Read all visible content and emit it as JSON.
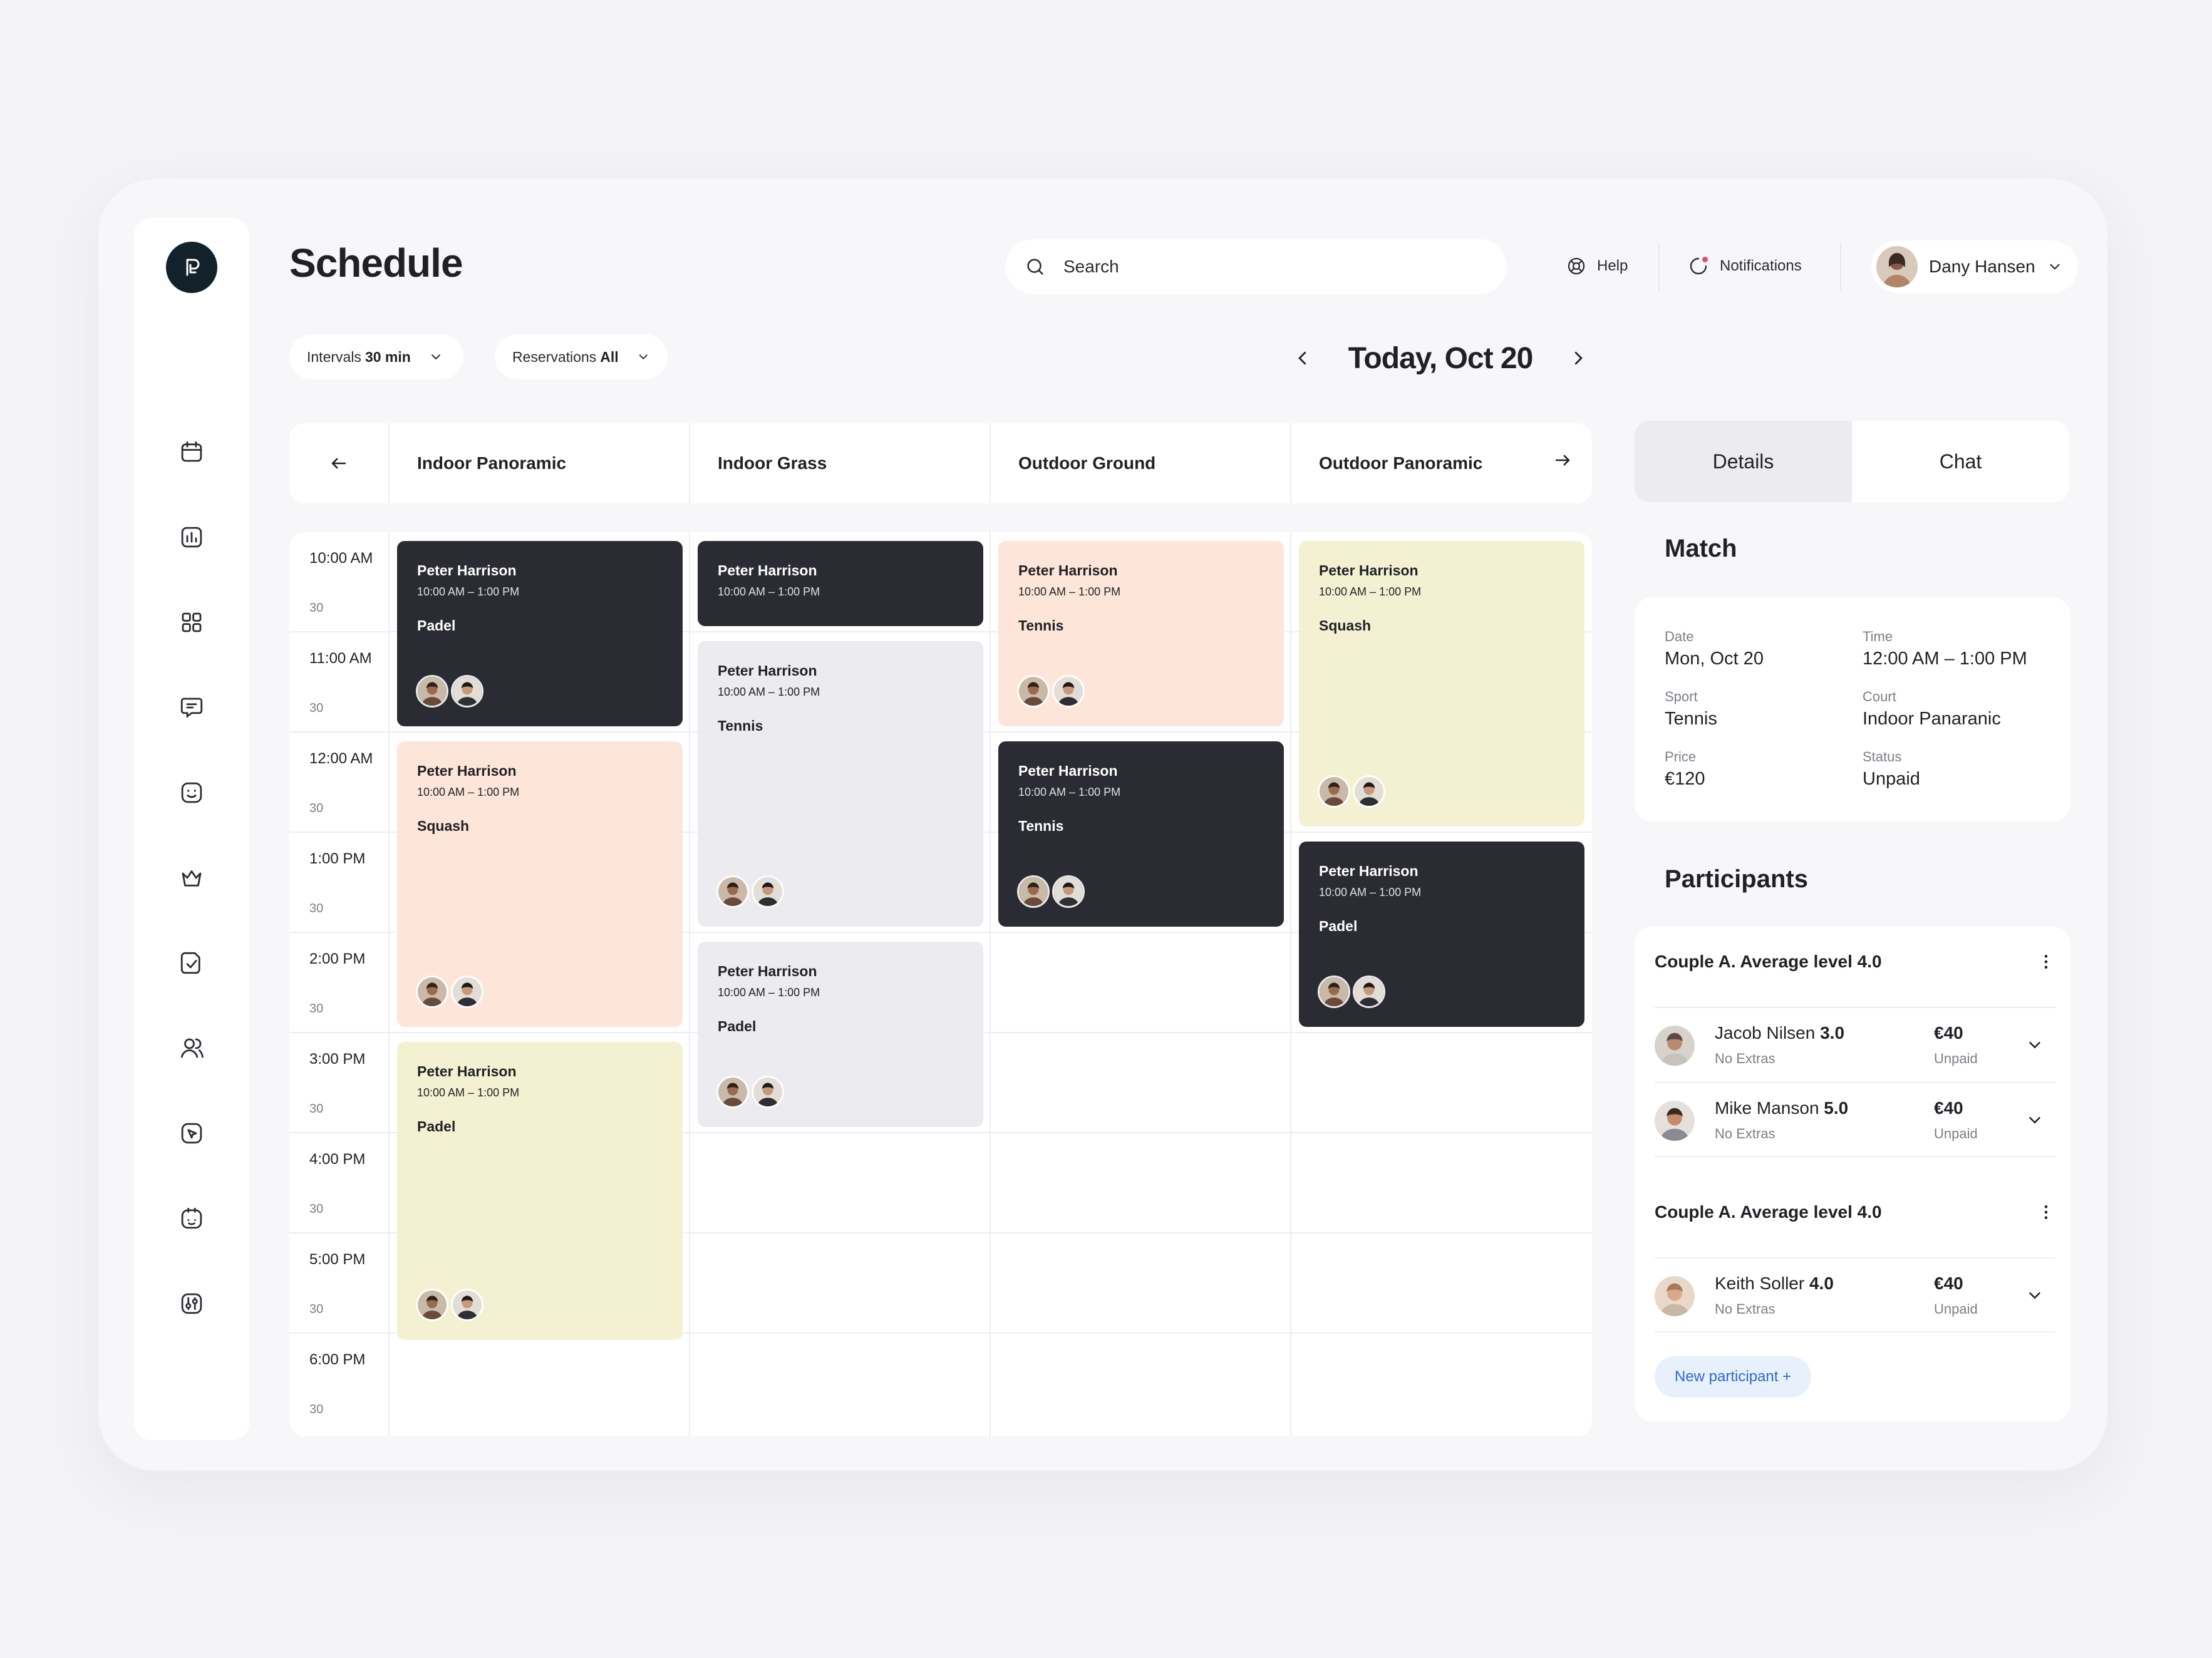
{
  "page": {
    "title": "Schedule"
  },
  "search": {
    "placeholder": "Search"
  },
  "header": {
    "help_label": "Help",
    "notifications_label": "Notifications",
    "user_name": "Dany Hansen"
  },
  "filters": {
    "intervals_label": "Intervals",
    "intervals_value": "30 min",
    "reservations_label": "Reservations",
    "reservations_value": "All"
  },
  "date_nav": {
    "date": "Today, Oct 20"
  },
  "courts": [
    "Indoor Panoramic",
    "Indoor Grass",
    "Outdoor Ground",
    "Outdoor Panoramic"
  ],
  "times": [
    {
      "hour": "10:00 AM",
      "half": "30"
    },
    {
      "hour": "11:00 AM",
      "half": "30"
    },
    {
      "hour": "12:00 AM",
      "half": "30"
    },
    {
      "hour": "1:00 PM",
      "half": "30"
    },
    {
      "hour": "2:00 PM",
      "half": "30"
    },
    {
      "hour": "3:00 PM",
      "half": "30"
    },
    {
      "hour": "4:00 PM",
      "half": "30"
    },
    {
      "hour": "5:00 PM",
      "half": "30"
    },
    {
      "hour": "6:00 PM",
      "half": "30"
    }
  ],
  "events": [
    {
      "name": "Peter Harrison",
      "time": "10:00 AM  –  1:00 PM",
      "sport": "Padel"
    },
    {
      "name": "Peter Harrison",
      "time": "10:00 AM  –  1:00 PM",
      "sport": "Squash"
    },
    {
      "name": "Peter Harrison",
      "time": "10:00 AM  –  1:00 PM",
      "sport": "Padel"
    },
    {
      "name": "Peter Harrison",
      "time": "10:00 AM  –  1:00 PM",
      "sport": ""
    },
    {
      "name": "Peter Harrison",
      "time": "10:00 AM  –  1:00 PM",
      "sport": "Tennis"
    },
    {
      "name": "Peter Harrison",
      "time": "10:00 AM  –  1:00 PM",
      "sport": "Padel"
    },
    {
      "name": "Peter Harrison",
      "time": "10:00 AM  –  1:00 PM",
      "sport": "Tennis"
    },
    {
      "name": "Peter Harrison",
      "time": "10:00 AM  –  1:00 PM",
      "sport": "Tennis"
    },
    {
      "name": "Peter Harrison",
      "time": "10:00 AM  –  1:00 PM",
      "sport": "Squash"
    },
    {
      "name": "Peter Harrison",
      "time": "10:00 AM  –  1:00 PM",
      "sport": "Padel"
    }
  ],
  "tabs": {
    "details": "Details",
    "chat": "Chat"
  },
  "match": {
    "title": "Match",
    "date_label": "Date",
    "date_value": "Mon, Oct 20",
    "time_label": "Time",
    "time_value": "12:00 AM – 1:00 PM",
    "sport_label": "Sport",
    "sport_value": "Tennis",
    "court_label": "Court",
    "court_value": "Indoor Panaranic",
    "price_label": "Price",
    "price_value": "€120",
    "status_label": "Status",
    "status_value": "Unpaid"
  },
  "participants": {
    "title": "Participants",
    "groups": [
      {
        "title": "Couple A. Average level 4.0",
        "members": [
          {
            "name": "Jacob Nilsen",
            "level": "3.0",
            "extras": "No Extras",
            "price": "€40",
            "status": "Unpaid"
          },
          {
            "name": "Mike Manson",
            "level": "5.0",
            "extras": "No Extras",
            "price": "€40",
            "status": "Unpaid"
          }
        ]
      },
      {
        "title": "Couple A. Average level 4.0",
        "members": [
          {
            "name": "Keith Soller",
            "level": "4.0",
            "extras": "No Extras",
            "price": "€40",
            "status": "Unpaid"
          }
        ]
      }
    ],
    "new_button": "New participant +"
  },
  "colors": {
    "background": "#f3f3f7",
    "dark_event": "#2b2c33",
    "peach_event": "#fde6d9",
    "grey_event": "#ebebf0",
    "yellow_event": "#f4f1d2",
    "accent_link": "#2f6bd1",
    "logo": "#13212b"
  },
  "icons": {
    "sidebar": [
      "calendar-icon",
      "chart-icon",
      "grid-icon",
      "chat-icon",
      "smile-icon",
      "crown-icon",
      "document-check-icon",
      "users-icon",
      "cursor-icon",
      "clock-icon",
      "settings-icon"
    ]
  }
}
